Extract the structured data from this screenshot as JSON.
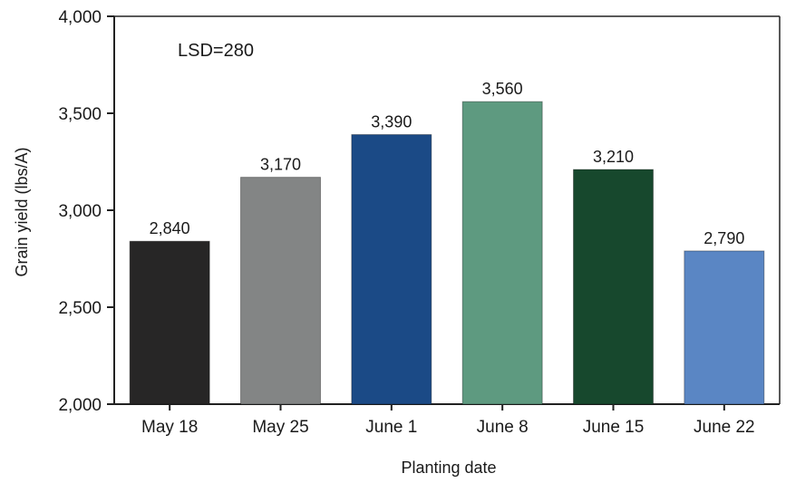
{
  "chart_data": {
    "type": "bar",
    "categories": [
      "May 18",
      "May 25",
      "June 1",
      "June 8",
      "June 15",
      "June 22"
    ],
    "values": [
      2840,
      3170,
      3390,
      3560,
      3210,
      2790
    ],
    "value_labels": [
      "2,840",
      "3,170",
      "3,390",
      "3,560",
      "3,210",
      "2,790"
    ],
    "bar_colors": [
      "#272626",
      "#838585",
      "#1b4a86",
      "#5e9a80",
      "#17482d",
      "#5a86c4"
    ],
    "xlabel": "Planting date",
    "ylabel": "Grain yield (lbs/A)",
    "ylim": [
      2000,
      4000
    ],
    "yticks": [
      2000,
      2500,
      3000,
      3500,
      4000
    ],
    "ytick_labels": [
      "2,000",
      "2,500",
      "3,000",
      "3,500",
      "4,000"
    ],
    "annotation": "LSD=280",
    "grid": false
  }
}
